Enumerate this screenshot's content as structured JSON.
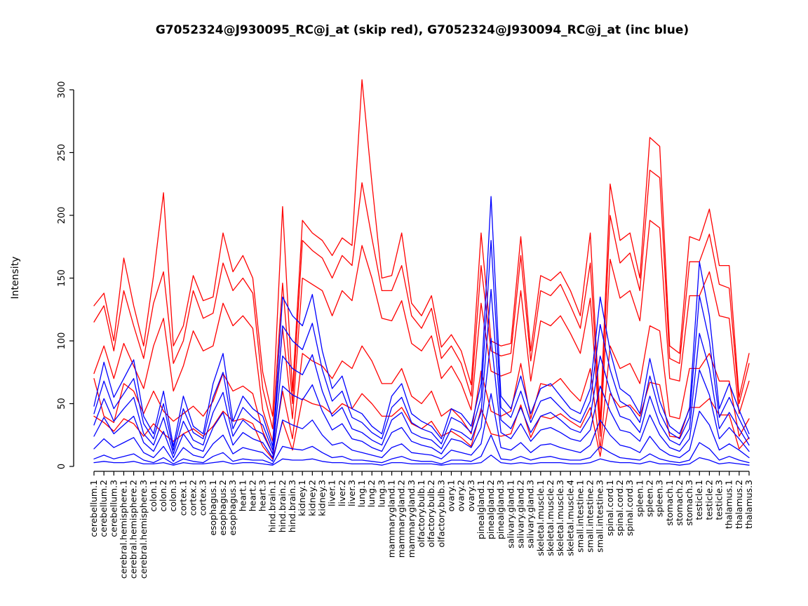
{
  "chart_data": {
    "type": "line",
    "title": "G7052324@J930095_RC@j_at (skip red), G7052324@J930094_RC@j_at (inc blue)",
    "xlabel": "",
    "ylabel": "Intensity",
    "ylim": [
      0,
      300
    ],
    "ytick_step": 50,
    "grid": false,
    "legend_position": "none",
    "x_tick_rotation": -90,
    "groups": {
      "skip": {
        "probeset": "G7052324@J930095_RC@j_at",
        "color": "#ff0000",
        "label": "skip red"
      },
      "inc": {
        "probeset": "G7052324@J930094_RC@j_at",
        "color": "#0000ff",
        "label": "inc blue"
      }
    },
    "categories": [
      "cerebellum.1",
      "cerebellum.2",
      "cerebellum.3",
      "cerebral.hemisphere.1",
      "cerebral.hemisphere.2",
      "cerebral.hemisphere.3",
      "colon.1",
      "colon.2",
      "colon.3",
      "cortex.1",
      "cortex.2",
      "cortex.3",
      "esophagus.1",
      "esophagus.2",
      "esophagus.3",
      "heart.1",
      "heart.2",
      "heart.3",
      "hind.brain.1",
      "hind.brain.2",
      "hind.brain.3",
      "kidney.1",
      "kidney.2",
      "kidney.3",
      "liver.1",
      "liver.2",
      "liver.3",
      "lung.1",
      "lung.2",
      "lung.3",
      "mammarygland.1",
      "mammarygland.2",
      "mammarygland.3",
      "olfactory.bulb.1",
      "olfactory.bulb.2",
      "olfactory.bulb.3",
      "ovary.1",
      "ovary.2",
      "ovary.3",
      "pinealgland.1",
      "pinealgland.2",
      "pinealgland.3",
      "salivary.gland.1",
      "salivary.gland.2",
      "salivary.gland.3",
      "skeletal.muscle.1",
      "skeletal.muscle.2",
      "skeletal.muscle.3",
      "skeletal.muscle.4",
      "small.intestine.1",
      "small.intestine.2",
      "small.intestine.3",
      "spinal.cord.1",
      "spinal.cord.2",
      "spinal.cord.3",
      "spleen.1",
      "spleen.2",
      "spleen.3",
      "stomach.1",
      "stomach.2",
      "stomach.3",
      "testicle.1",
      "testicle.2",
      "testicle.3",
      "thalamus.1",
      "thalamus.2",
      "thalamus.3"
    ],
    "series": [
      {
        "name": "skip.1",
        "group": "skip",
        "color": "#ff0000",
        "values": [
          128,
          138,
          100,
          166,
          128,
          96,
          152,
          218,
          96,
          112,
          152,
          132,
          135,
          186,
          155,
          168,
          150,
          75,
          40,
          207,
          60,
          196,
          186,
          180,
          168,
          182,
          176,
          308,
          226,
          150,
          152,
          186,
          130,
          120,
          136,
          95,
          105,
          92,
          65,
          186,
          100,
          96,
          98,
          183,
          92,
          152,
          148,
          155,
          140,
          120,
          186,
          35,
          225,
          180,
          186,
          150,
          262,
          255,
          96,
          90,
          183,
          180,
          205,
          160,
          160,
          55,
          90
        ]
      },
      {
        "name": "skip.2",
        "group": "skip",
        "color": "#ff0000",
        "values": [
          115,
          128,
          92,
          140,
          112,
          86,
          130,
          155,
          82,
          100,
          140,
          118,
          122,
          162,
          140,
          150,
          138,
          62,
          30,
          146,
          50,
          180,
          172,
          166,
          150,
          168,
          160,
          226,
          182,
          140,
          140,
          160,
          120,
          110,
          126,
          86,
          96,
          82,
          56,
          160,
          92,
          88,
          90,
          168,
          84,
          140,
          136,
          145,
          128,
          110,
          162,
          30,
          200,
          162,
          170,
          140,
          236,
          230,
          86,
          82,
          163,
          163,
          185,
          145,
          142,
          50,
          82
        ]
      },
      {
        "name": "skip.3",
        "group": "skip",
        "color": "#ff0000",
        "values": [
          74,
          96,
          70,
          98,
          80,
          62,
          96,
          118,
          60,
          80,
          108,
          92,
          96,
          130,
          112,
          120,
          110,
          45,
          20,
          110,
          38,
          150,
          145,
          140,
          120,
          140,
          132,
          176,
          150,
          118,
          116,
          132,
          98,
          92,
          104,
          70,
          80,
          66,
          45,
          130,
          76,
          72,
          75,
          140,
          68,
          116,
          112,
          120,
          106,
          90,
          134,
          24,
          165,
          134,
          140,
          116,
          196,
          190,
          70,
          68,
          136,
          136,
          155,
          120,
          118,
          42,
          68
        ]
      },
      {
        "name": "skip.4",
        "group": "skip",
        "color": "#ff0000",
        "values": [
          70,
          40,
          35,
          66,
          60,
          42,
          60,
          44,
          36,
          42,
          48,
          40,
          52,
          74,
          60,
          64,
          58,
          28,
          10,
          60,
          22,
          90,
          84,
          80,
          70,
          84,
          78,
          96,
          84,
          66,
          66,
          78,
          56,
          50,
          60,
          40,
          46,
          38,
          26,
          76,
          44,
          40,
          44,
          82,
          38,
          66,
          64,
          70,
          60,
          52,
          78,
          14,
          96,
          78,
          82,
          66,
          112,
          108,
          40,
          38,
          78,
          78,
          90,
          68,
          68,
          24,
          38
        ]
      },
      {
        "name": "skip.5",
        "group": "skip",
        "color": "#ff0000",
        "values": [
          40,
          35,
          28,
          38,
          34,
          24,
          34,
          26,
          20,
          26,
          30,
          24,
          32,
          44,
          36,
          38,
          34,
          16,
          6,
          36,
          13,
          54,
          50,
          48,
          42,
          50,
          46,
          58,
          50,
          40,
          40,
          47,
          34,
          30,
          36,
          24,
          28,
          23,
          16,
          46,
          26,
          24,
          26,
          49,
          23,
          40,
          38,
          42,
          36,
          31,
          47,
          8,
          58,
          47,
          49,
          40,
          67,
          65,
          24,
          23,
          47,
          47,
          54,
          41,
          41,
          14,
          23
        ]
      },
      {
        "name": "inc.1",
        "group": "inc",
        "color": "#0000ff",
        "values": [
          48,
          83,
          55,
          70,
          85,
          40,
          26,
          60,
          16,
          56,
          32,
          26,
          66,
          90,
          36,
          56,
          46,
          40,
          16,
          135,
          120,
          112,
          137,
          92,
          62,
          72,
          46,
          42,
          32,
          26,
          56,
          66,
          42,
          36,
          32,
          22,
          46,
          42,
          32,
          66,
          215,
          56,
          46,
          72,
          42,
          62,
          66,
          56,
          46,
          42,
          62,
          135,
          92,
          62,
          56,
          42,
          86,
          52,
          32,
          26,
          46,
          163,
          120,
          46,
          66,
          45,
          26
        ]
      },
      {
        "name": "inc.2",
        "group": "inc",
        "color": "#0000ff",
        "values": [
          42,
          68,
          46,
          58,
          70,
          34,
          22,
          50,
          13,
          46,
          27,
          22,
          55,
          75,
          30,
          47,
          39,
          33,
          13,
          112,
          100,
          93,
          114,
          77,
          52,
          60,
          39,
          35,
          27,
          22,
          47,
          55,
          35,
          30,
          27,
          18,
          39,
          35,
          27,
          55,
          180,
          47,
          39,
          60,
          35,
          52,
          55,
          47,
          39,
          35,
          52,
          113,
          77,
          52,
          47,
          35,
          72,
          43,
          27,
          22,
          39,
          136,
          100,
          39,
          55,
          38,
          22
        ]
      },
      {
        "name": "inc.3",
        "group": "inc",
        "color": "#0000ff",
        "values": [
          33,
          54,
          36,
          46,
          55,
          26,
          17,
          39,
          10,
          36,
          21,
          17,
          43,
          59,
          24,
          37,
          30,
          26,
          10,
          88,
          78,
          73,
          89,
          60,
          40,
          47,
          30,
          27,
          21,
          17,
          37,
          43,
          27,
          23,
          21,
          14,
          30,
          27,
          21,
          43,
          141,
          37,
          30,
          47,
          27,
          40,
          43,
          37,
          30,
          27,
          40,
          88,
          60,
          40,
          37,
          27,
          56,
          34,
          21,
          17,
          30,
          106,
          78,
          30,
          43,
          30,
          17
        ]
      },
      {
        "name": "inc.4",
        "group": "inc",
        "color": "#0000ff",
        "values": [
          24,
          39,
          26,
          33,
          40,
          19,
          12,
          28,
          7,
          26,
          15,
          12,
          31,
          43,
          17,
          27,
          22,
          19,
          7,
          64,
          57,
          53,
          65,
          44,
          29,
          34,
          22,
          20,
          15,
          12,
          27,
          31,
          20,
          17,
          15,
          10,
          22,
          20,
          15,
          31,
          102,
          27,
          22,
          34,
          20,
          29,
          31,
          27,
          22,
          20,
          29,
          64,
          44,
          29,
          27,
          20,
          41,
          25,
          15,
          12,
          22,
          77,
          57,
          22,
          31,
          22,
          12
        ]
      },
      {
        "name": "inc.5",
        "group": "inc",
        "color": "#0000ff",
        "values": [
          14,
          22,
          15,
          19,
          23,
          11,
          7,
          16,
          4,
          15,
          9,
          7,
          18,
          25,
          10,
          15,
          13,
          11,
          4,
          37,
          33,
          30,
          37,
          25,
          17,
          19,
          13,
          11,
          9,
          7,
          15,
          18,
          11,
          10,
          9,
          6,
          13,
          11,
          9,
          18,
          58,
          15,
          13,
          19,
          11,
          17,
          18,
          15,
          13,
          11,
          17,
          37,
          25,
          17,
          15,
          11,
          24,
          14,
          9,
          7,
          13,
          44,
          33,
          13,
          18,
          13,
          7
        ]
      },
      {
        "name": "inc.6",
        "group": "inc",
        "color": "#0000ff",
        "values": [
          6,
          9,
          6,
          8,
          10,
          5,
          3,
          7,
          2,
          6,
          4,
          3,
          8,
          11,
          4,
          6,
          5,
          5,
          2,
          16,
          14,
          13,
          16,
          11,
          7,
          8,
          5,
          5,
          4,
          3,
          6,
          8,
          5,
          4,
          4,
          2,
          5,
          5,
          4,
          8,
          25,
          6,
          5,
          8,
          5,
          7,
          8,
          6,
          5,
          5,
          7,
          16,
          11,
          7,
          6,
          5,
          10,
          6,
          4,
          3,
          5,
          19,
          14,
          5,
          8,
          5,
          3
        ]
      },
      {
        "name": "inc.7",
        "group": "inc",
        "color": "#0000ff",
        "values": [
          3,
          4,
          3,
          3,
          4,
          2,
          2,
          3,
          1,
          3,
          2,
          2,
          3,
          4,
          2,
          3,
          3,
          2,
          1,
          6,
          5,
          5,
          6,
          4,
          3,
          3,
          2,
          2,
          2,
          1,
          3,
          3,
          2,
          2,
          2,
          1,
          2,
          2,
          2,
          3,
          9,
          3,
          2,
          3,
          2,
          3,
          3,
          3,
          2,
          2,
          3,
          6,
          4,
          3,
          3,
          2,
          4,
          2,
          2,
          1,
          2,
          7,
          5,
          2,
          3,
          2,
          1
        ]
      }
    ]
  }
}
